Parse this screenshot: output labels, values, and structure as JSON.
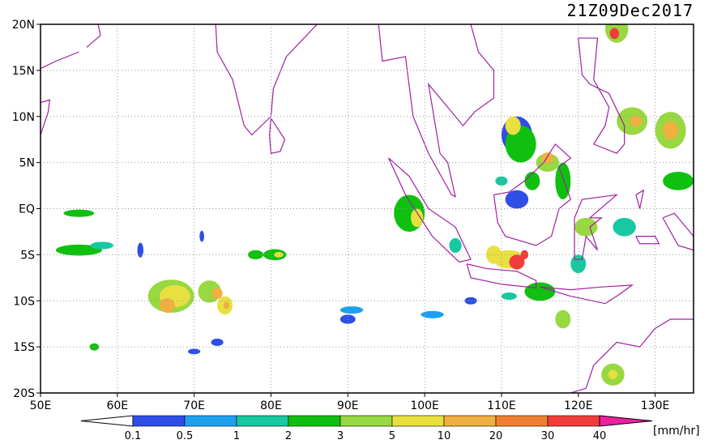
{
  "map": {
    "title": "21Z09Dec2017",
    "lon_ticks": [
      {
        "value": 50,
        "label": "50E"
      },
      {
        "value": 60,
        "label": "60E"
      },
      {
        "value": 70,
        "label": "70E"
      },
      {
        "value": 80,
        "label": "80E"
      },
      {
        "value": 90,
        "label": "90E"
      },
      {
        "value": 100,
        "label": "100E"
      },
      {
        "value": 110,
        "label": "110E"
      },
      {
        "value": 120,
        "label": "120E"
      },
      {
        "value": 130,
        "label": "130E"
      }
    ],
    "lat_ticks": [
      {
        "value": 20,
        "label": "20N"
      },
      {
        "value": 15,
        "label": "15N"
      },
      {
        "value": 10,
        "label": "10N"
      },
      {
        "value": 5,
        "label": "5N"
      },
      {
        "value": 0,
        "label": "EQ"
      },
      {
        "value": -5,
        "label": "5S"
      },
      {
        "value": -10,
        "label": "10S"
      },
      {
        "value": -15,
        "label": "15S"
      },
      {
        "value": -20,
        "label": "20S"
      }
    ],
    "lon_range": [
      50,
      135
    ],
    "lat_range": [
      -20,
      20
    ],
    "colorbar": {
      "levels": [
        0.1,
        0.5,
        1,
        2,
        3,
        5,
        10,
        20,
        30,
        40
      ],
      "colors": [
        "#ffffff",
        "#2f4ee6",
        "#1fa0ef",
        "#18c8a0",
        "#10c010",
        "#98d840",
        "#e8e040",
        "#f0b040",
        "#f08030",
        "#f03c3c",
        "#f020a0"
      ],
      "unit": "[mm/hr]"
    }
  }
}
